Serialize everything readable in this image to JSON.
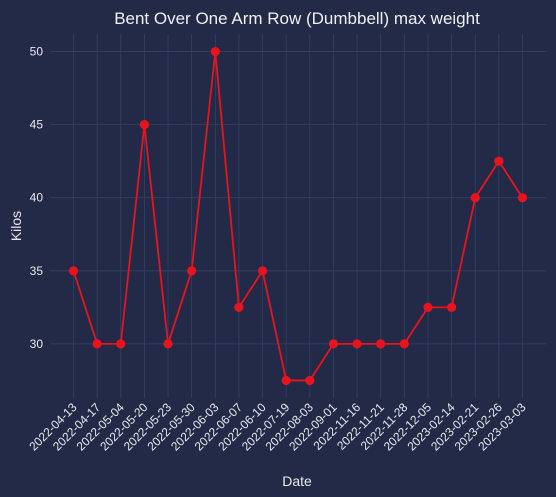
{
  "chart_data": {
    "type": "line",
    "title": "Bent Over One Arm Row (Dumbbell) max weight",
    "xlabel": "Date",
    "ylabel": "Kilos",
    "categories": [
      "2022-04-13",
      "2022-04-17",
      "2022-05-04",
      "2022-05-20",
      "2022-05-23",
      "2022-05-30",
      "2022-06-03",
      "2022-06-07",
      "2022-06-10",
      "2022-07-19",
      "2022-08-03",
      "2022-09-01",
      "2022-11-16",
      "2022-11-21",
      "2022-11-28",
      "2022-12-05",
      "2023-02-14",
      "2023-02-21",
      "2023-02-26",
      "2023-03-03"
    ],
    "series": [
      {
        "values": [
          35,
          30,
          30,
          45,
          30,
          35,
          50,
          32.5,
          35,
          27.5,
          27.5,
          30,
          30,
          30,
          30,
          32.5,
          32.5,
          40,
          42.5,
          40
        ]
      }
    ],
    "yticks": [
      30,
      35,
      40,
      45,
      50
    ],
    "ylim": [
      26.3,
      51.2
    ],
    "grid": true,
    "colors": {
      "background": "#232a48",
      "line": "#e8141d",
      "grid": "#34406a"
    }
  }
}
